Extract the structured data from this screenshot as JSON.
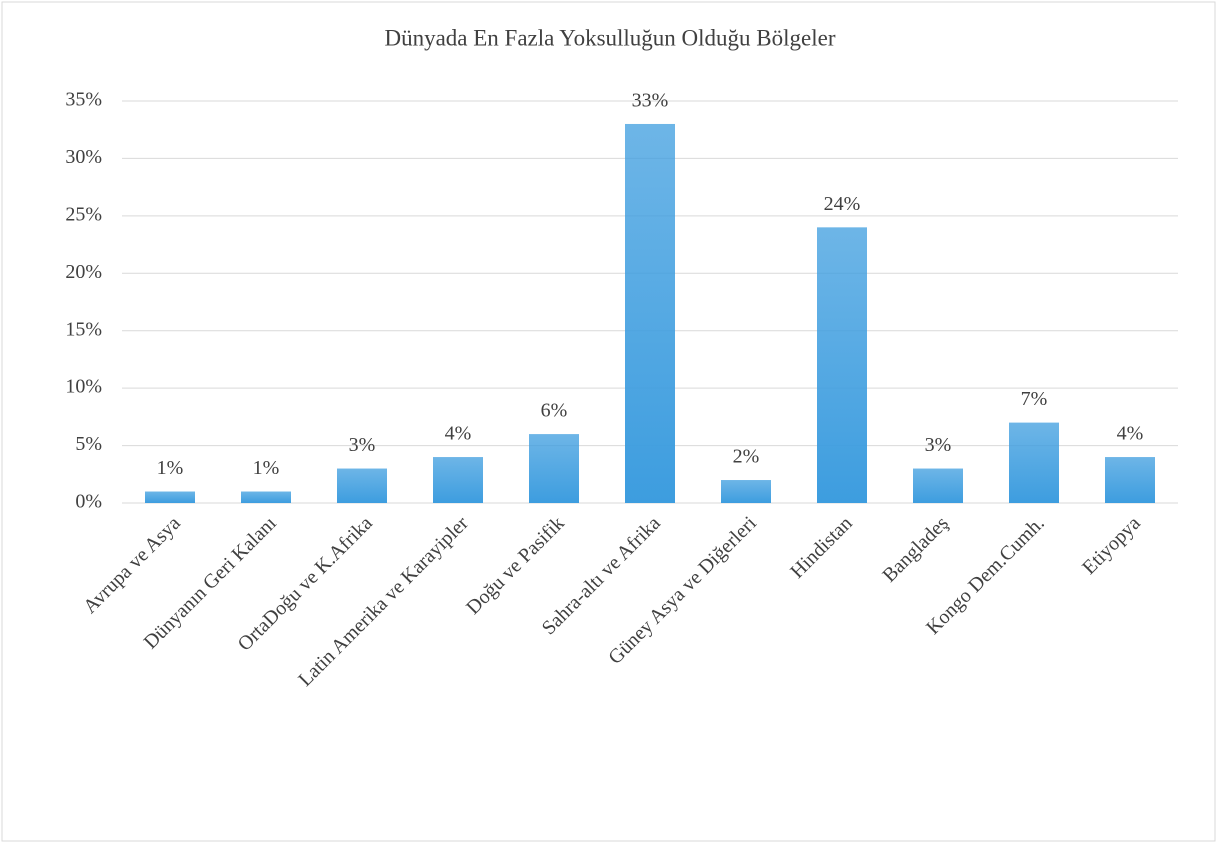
{
  "chart_data": {
    "type": "bar",
    "title": "Dünyada En Fazla Yoksulluğun Olduğu Bölgeler",
    "categories": [
      "Avrupa ve Asya",
      "Dünyanın Geri Kalanı",
      "OrtaDoğu ve K.Afrika",
      "Latin Amerika ve Karayipler",
      "Doğu ve Pasifik",
      "Sahra-altı ve Afrika",
      "Güney Asya ve Diğerleri",
      "Hindistan",
      "Bangladeş",
      "Kongo Dem.Cumh.",
      "Etiyopya"
    ],
    "values": [
      1,
      1,
      3,
      4,
      6,
      33,
      2,
      24,
      3,
      7,
      4
    ],
    "value_labels": [
      "1%",
      "1%",
      "3%",
      "4%",
      "6%",
      "33%",
      "2%",
      "24%",
      "3%",
      "7%",
      "4%"
    ],
    "color": "#3d9ddf",
    "ylim": [
      0,
      35
    ],
    "yticks": [
      {
        "value": 0,
        "label": "0%"
      },
      {
        "value": 5,
        "label": "5%"
      },
      {
        "value": 10,
        "label": "10%"
      },
      {
        "value": 15,
        "label": "15%"
      },
      {
        "value": 20,
        "label": "20%"
      },
      {
        "value": 25,
        "label": "25%"
      },
      {
        "value": 30,
        "label": "30%"
      },
      {
        "value": 35,
        "label": "35%"
      }
    ],
    "grid": true
  }
}
